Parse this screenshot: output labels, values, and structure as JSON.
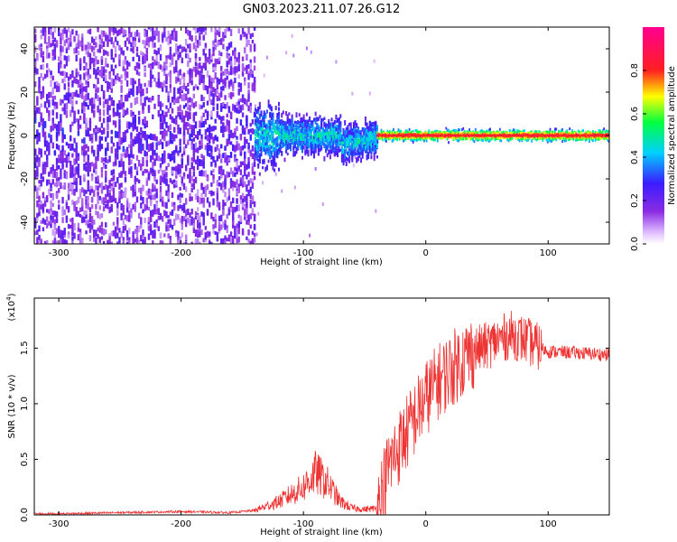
{
  "title": "GN03.2023.211.07.26.G12",
  "chart_data": [
    {
      "type": "heatmap",
      "panel": "top",
      "xlabel": "Height of straight line (km)",
      "ylabel": "Frequency (Hz)",
      "xlim": [
        -320,
        150
      ],
      "ylim": [
        -50,
        50
      ],
      "x_ticks": [
        -300,
        -200,
        -100,
        0,
        100
      ],
      "y_ticks": [
        -40,
        -20,
        0,
        20,
        40
      ],
      "colorbar": {
        "label": "Normalized spectral amplitude",
        "range": [
          0,
          1
        ],
        "ticks": [
          "0.0",
          "0.2",
          "0.4",
          "0.6",
          "0.8"
        ],
        "colormap": "rainbow (white-purple-blue-cyan-green-yellow-red-magenta)"
      },
      "features": [
        {
          "x_range": [
            -320,
            -140
          ],
          "freq_spread": [
            -50,
            50
          ],
          "amplitude": "0.05-0.3"
        },
        {
          "x_range": [
            -140,
            -40
          ],
          "freq_spread": [
            -15,
            15
          ],
          "amplitude": "0.2-0.5"
        },
        {
          "x_range": [
            -40,
            150
          ],
          "freq_center": 0,
          "amplitude": "0.8-0.9"
        }
      ]
    },
    {
      "type": "line",
      "panel": "bottom",
      "xlabel": "Height of straight line (km)",
      "ylabel": "SNR (10 * v/v)",
      "y_scale_label": "(x10",
      "y_scale_exp": "4",
      "y_scale_close": ")",
      "xlim": [
        -320,
        150
      ],
      "ylim": [
        0,
        1.95
      ],
      "x_ticks": [
        -300,
        -200,
        -100,
        0,
        100
      ],
      "y_ticks": [
        "0.0",
        "0.5",
        "1.0",
        "1.5"
      ],
      "color": "#ee3333",
      "series": [
        {
          "x": [
            -320,
            -300,
            -250,
            -200,
            -160,
            -140,
            -120,
            -100,
            -90,
            -80,
            -70,
            -60,
            -50,
            -40,
            -35,
            -30,
            -20,
            -10,
            0,
            10,
            20,
            30,
            40,
            50,
            60,
            70,
            80,
            90,
            100,
            120,
            150
          ],
          "y": [
            0.01,
            0.01,
            0.02,
            0.03,
            0.02,
            0.04,
            0.12,
            0.25,
            0.38,
            0.28,
            0.12,
            0.06,
            0.05,
            0.06,
            0.25,
            0.45,
            0.65,
            0.85,
            1.05,
            1.2,
            1.3,
            1.4,
            1.48,
            1.52,
            1.58,
            1.62,
            1.58,
            1.52,
            1.47,
            1.46,
            1.44
          ]
        }
      ]
    }
  ]
}
